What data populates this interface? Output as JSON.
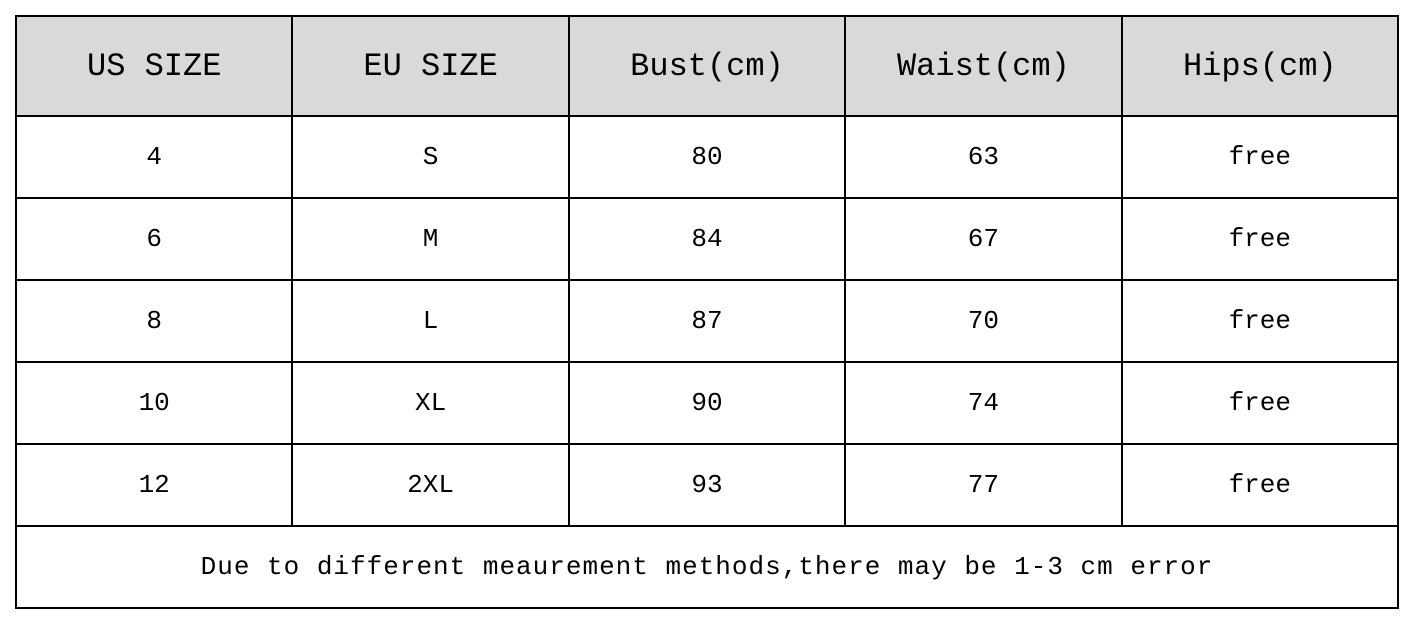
{
  "table": {
    "type": "table",
    "columns": [
      {
        "label": "US SIZE",
        "width": "20%"
      },
      {
        "label": "EU SIZE",
        "width": "20%"
      },
      {
        "label": "Bust(cm)",
        "width": "20%"
      },
      {
        "label": "Waist(cm)",
        "width": "20%"
      },
      {
        "label": "Hips(cm)",
        "width": "20%"
      }
    ],
    "rows": [
      [
        "4",
        "S",
        "80",
        "63",
        "free"
      ],
      [
        "6",
        "M",
        "84",
        "67",
        "free"
      ],
      [
        "8",
        "L",
        "87",
        "70",
        "free"
      ],
      [
        "10",
        "XL",
        "90",
        "74",
        "free"
      ],
      [
        "12",
        "2XL",
        "93",
        "77",
        "free"
      ]
    ],
    "footer_text": "Due to different meaurement methods,there may be 1-3 cm error",
    "header_background": "#d9d9d9",
    "cell_background": "#ffffff",
    "border_color": "#000000",
    "border_width": 2,
    "header_fontsize": 32,
    "body_fontsize": 26,
    "footer_fontsize": 26,
    "text_color": "#000000",
    "font_family": "Courier New, monospace",
    "header_row_height": 100,
    "body_row_height": 82
  }
}
